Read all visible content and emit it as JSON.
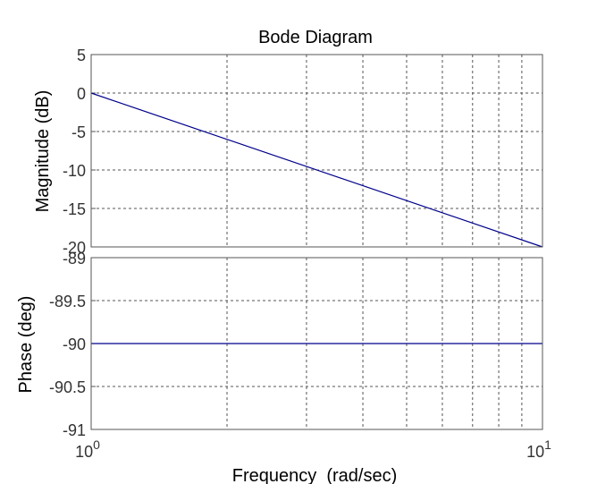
{
  "chart_data": [
    {
      "type": "line",
      "panel": "magnitude",
      "title": "Bode Diagram",
      "ylabel": "Magnitude (dB)",
      "xscale": "log",
      "xlim": [
        1,
        10
      ],
      "ylim": [
        -20,
        5
      ],
      "yticks": [
        5,
        0,
        -5,
        -10,
        -15,
        -20
      ],
      "grid": true,
      "series": [
        {
          "x": [
            1,
            10
          ],
          "y": [
            0,
            -20
          ],
          "color": "#00008b"
        }
      ]
    },
    {
      "type": "line",
      "panel": "phase",
      "ylabel": "Phase (deg)",
      "xlabel": "Frequency  (rad/sec)",
      "xscale": "log",
      "xlim": [
        1,
        10
      ],
      "ylim": [
        -91,
        -89
      ],
      "yticks": [
        "-89",
        "-89.5",
        "-90",
        "-90.5",
        "-91"
      ],
      "xticks": [
        {
          "base": "10",
          "exp": "0",
          "value": 1
        },
        {
          "base": "10",
          "exp": "1",
          "value": 10
        }
      ],
      "grid": true,
      "series": [
        {
          "x": [
            1,
            10
          ],
          "y": [
            -90,
            -90
          ],
          "color": "#00008b"
        }
      ]
    }
  ]
}
